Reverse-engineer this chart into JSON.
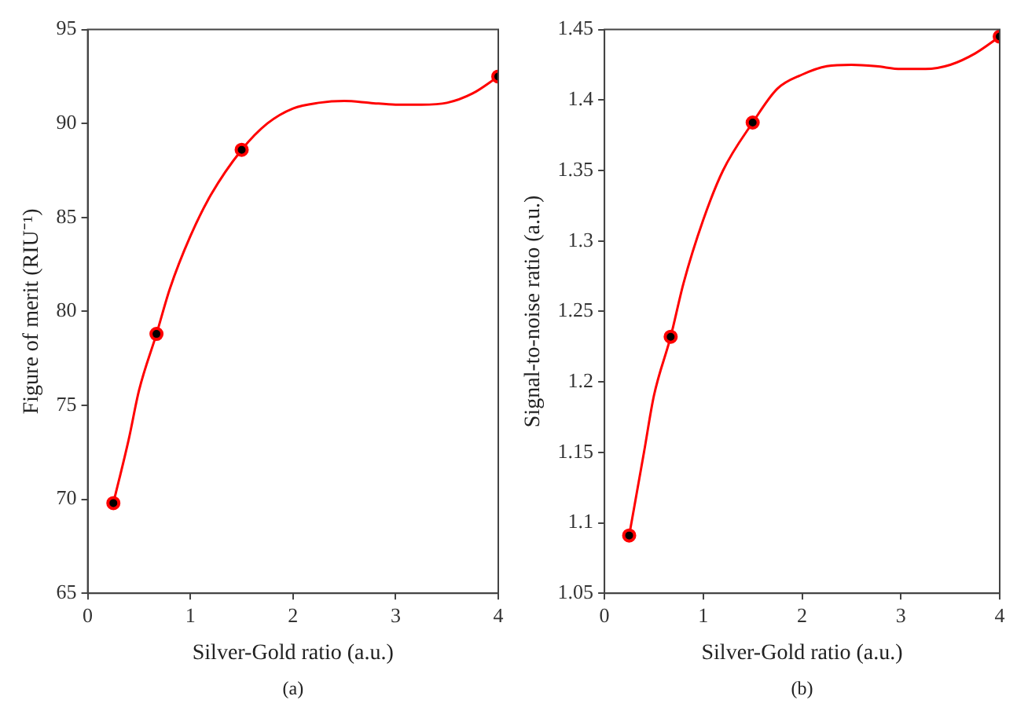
{
  "chart_data": [
    {
      "type": "scatter",
      "xlabel": "Silver-Gold ratio (a.u.)",
      "ylabel": "Figure of merit (RIU⁻¹)",
      "annotations": [
        "(a)"
      ],
      "xlim": [
        0,
        4
      ],
      "xticks": [
        0,
        1,
        2,
        3,
        4
      ],
      "ylim": [
        65,
        95
      ],
      "yticks": [
        65,
        70,
        75,
        80,
        85,
        90,
        95
      ],
      "grid": false,
      "legend": false,
      "series": [
        {
          "type": "line",
          "color": "#ff0000",
          "line_style": "solid",
          "marker": "none",
          "x": [
            0.25,
            0.4,
            0.5,
            0.67,
            0.8,
            1.0,
            1.2,
            1.5,
            1.75,
            2.0,
            2.25,
            2.5,
            2.75,
            3.0,
            3.25,
            3.5,
            3.75,
            4
          ],
          "values": [
            69.8,
            73.2,
            75.8,
            78.8,
            81.2,
            84.0,
            86.2,
            88.6,
            90.0,
            90.8,
            91.1,
            91.2,
            91.1,
            91.0,
            91.0,
            91.1,
            91.6,
            92.5
          ]
        },
        {
          "color": "#000000",
          "marker": "circle",
          "x": [
            0.25,
            0.67,
            1.5,
            4
          ],
          "values": [
            69.8,
            78.8,
            88.6,
            92.5
          ]
        }
      ]
    },
    {
      "type": "scatter",
      "xlabel": "Silver-Gold ratio (a.u.)",
      "ylabel": "Signal-to-noise ratio (a.u.)",
      "annotations": [
        "(b)"
      ],
      "xlim": [
        0,
        4
      ],
      "xticks": [
        0,
        1,
        2,
        3,
        4
      ],
      "ylim": [
        1.05,
        1.45
      ],
      "yticks": [
        1.05,
        1.1,
        1.15,
        1.2,
        1.25,
        1.3,
        1.35,
        1.4,
        1.45
      ],
      "grid": false,
      "legend": false,
      "series": [
        {
          "type": "line",
          "color": "#ff0000",
          "line_style": "solid",
          "marker": "none",
          "x": [
            0.25,
            0.4,
            0.5,
            0.67,
            0.8,
            1.0,
            1.2,
            1.5,
            1.75,
            2.0,
            2.25,
            2.5,
            2.75,
            3.0,
            3.25,
            3.5,
            3.75,
            4
          ],
          "values": [
            1.091,
            1.15,
            1.19,
            1.232,
            1.27,
            1.315,
            1.35,
            1.384,
            1.408,
            1.418,
            1.424,
            1.425,
            1.424,
            1.422,
            1.422,
            1.425,
            1.433,
            1.445
          ]
        },
        {
          "color": "#000000",
          "marker": "circle",
          "x": [
            0.25,
            0.67,
            1.5,
            4
          ],
          "values": [
            1.091,
            1.232,
            1.384,
            1.445
          ]
        }
      ]
    }
  ]
}
